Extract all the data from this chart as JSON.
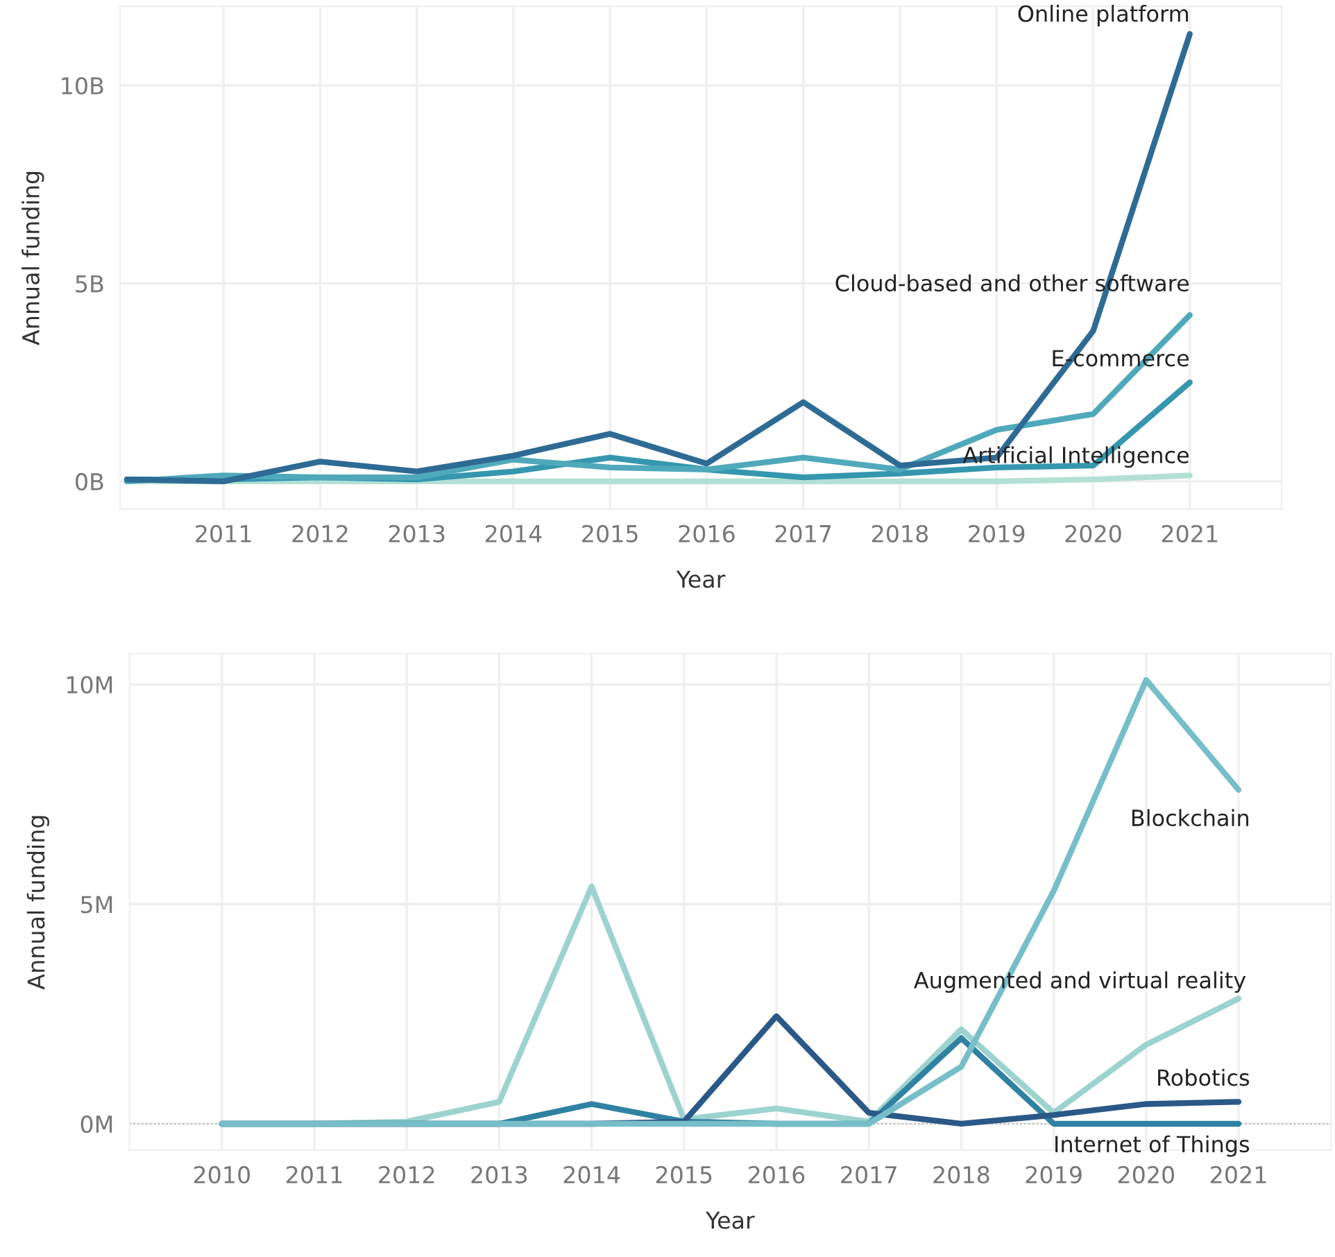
{
  "chart_data": [
    {
      "type": "line",
      "xlabel": "Year",
      "ylabel": "Annual funding",
      "x": [
        2010,
        2011,
        2012,
        2013,
        2014,
        2015,
        2016,
        2017,
        2018,
        2019,
        2020,
        2021
      ],
      "xlim": [
        2009.93,
        2021.95
      ],
      "xticks": [
        2011,
        2012,
        2013,
        2014,
        2015,
        2016,
        2017,
        2018,
        2019,
        2020,
        2021
      ],
      "ylim": [
        -0.7,
        12
      ],
      "yticks": [
        {
          "value": 0,
          "label": "0B"
        },
        {
          "value": 5,
          "label": "5B"
        },
        {
          "value": 10,
          "label": "10B"
        }
      ],
      "grid": true,
      "legend": false,
      "series": [
        {
          "name": "Artificial Intelligence",
          "color": "#b3e0d4",
          "values": [
            0,
            0,
            0,
            0,
            0,
            0,
            0,
            0,
            0,
            0,
            0.05,
            0.15
          ]
        },
        {
          "name": "E-commerce",
          "color": "#3597ae",
          "values": [
            0.05,
            0.05,
            0.1,
            0.05,
            0.25,
            0.6,
            0.3,
            0.1,
            0.2,
            0.35,
            0.4,
            2.5
          ]
        },
        {
          "name": "Cloud-based and other software",
          "color": "#4fa9bb",
          "values": [
            0,
            0.15,
            0.1,
            0.1,
            0.55,
            0.35,
            0.3,
            0.6,
            0.3,
            1.3,
            1.7,
            4.2
          ]
        },
        {
          "name": "Online platform",
          "color": "#2e6b94",
          "values": [
            0.05,
            0,
            0.5,
            0.25,
            0.65,
            1.2,
            0.45,
            2.0,
            0.4,
            0.6,
            3.8,
            11.3
          ]
        }
      ]
    },
    {
      "type": "line",
      "xlabel": "Year",
      "ylabel": "Annual funding",
      "x": [
        2010,
        2011,
        2012,
        2013,
        2014,
        2015,
        2016,
        2017,
        2018,
        2019,
        2020,
        2021
      ],
      "xlim": [
        2009,
        2022
      ],
      "xticks": [
        2010,
        2011,
        2012,
        2013,
        2014,
        2015,
        2016,
        2017,
        2018,
        2019,
        2020,
        2021
      ],
      "ylim": [
        -0.6,
        10.7
      ],
      "yticks": [
        {
          "value": 0,
          "label": "0M"
        },
        {
          "value": 5,
          "label": "5M"
        },
        {
          "value": 10,
          "label": "10M"
        }
      ],
      "grid": true,
      "legend": false,
      "ref_lines": [
        {
          "axis": "y",
          "value": 0,
          "color": "#bbbbbb",
          "line_style": "dotted"
        }
      ],
      "series": [
        {
          "name": "Augmented and virtual reality",
          "color": "#9dd3cf",
          "values": [
            0,
            0,
            0.05,
            0.5,
            5.4,
            0.1,
            0.35,
            0.05,
            2.15,
            0.25,
            1.8,
            2.85
          ]
        },
        {
          "name": "Internet of Things",
          "color": "#2f82a1",
          "values": [
            0,
            0,
            0,
            0,
            0.45,
            0.05,
            0,
            0,
            1.95,
            0,
            0,
            0
          ]
        },
        {
          "name": "Robotics",
          "color": "#2b5987",
          "values": [
            0,
            0,
            0,
            0,
            0,
            0.05,
            2.45,
            0.25,
            0,
            0.2,
            0.45,
            0.5
          ]
        },
        {
          "name": "Blockchain",
          "color": "#76bec9",
          "values": [
            0,
            0,
            0,
            0,
            0,
            0,
            0,
            0,
            1.3,
            5.3,
            10.1,
            7.6
          ]
        }
      ]
    }
  ]
}
